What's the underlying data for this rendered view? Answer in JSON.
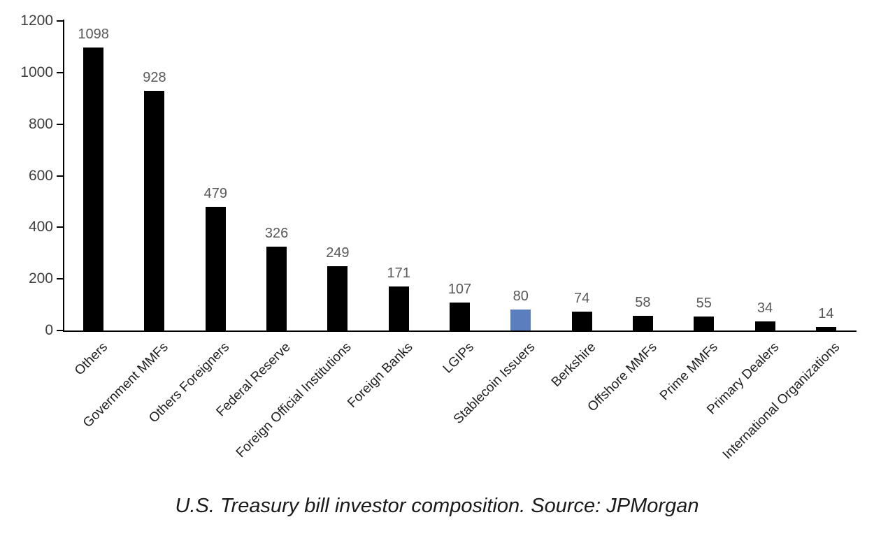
{
  "chart_data": {
    "type": "bar",
    "categories": [
      "Others",
      "Government MMFs",
      "Others Foreigners",
      "Federal Reserve",
      "Foreign Official Institutions",
      "Foreign Banks",
      "LGIPs",
      "Stablecoin Issuers",
      "Berkshire",
      "Offshore MMFs",
      "Prime MMFs",
      "Primary Dealers",
      "International Organizations"
    ],
    "values": [
      1098,
      928,
      479,
      326,
      249,
      171,
      107,
      80,
      74,
      58,
      55,
      34,
      14
    ],
    "value_labels_shown": true,
    "title": "",
    "xlabel": "",
    "ylabel": "",
    "ylim": [
      0,
      1200
    ],
    "yticks": [
      0,
      200,
      400,
      600,
      800,
      1000,
      1200
    ],
    "grid": false,
    "legend": false,
    "bar_color": "#000000",
    "highlighted_category": "Stablecoin Issuers",
    "highlight_color": "#5B7FBE",
    "caption": "U.S. Treasury bill investor composition. Source: JPMorgan"
  }
}
